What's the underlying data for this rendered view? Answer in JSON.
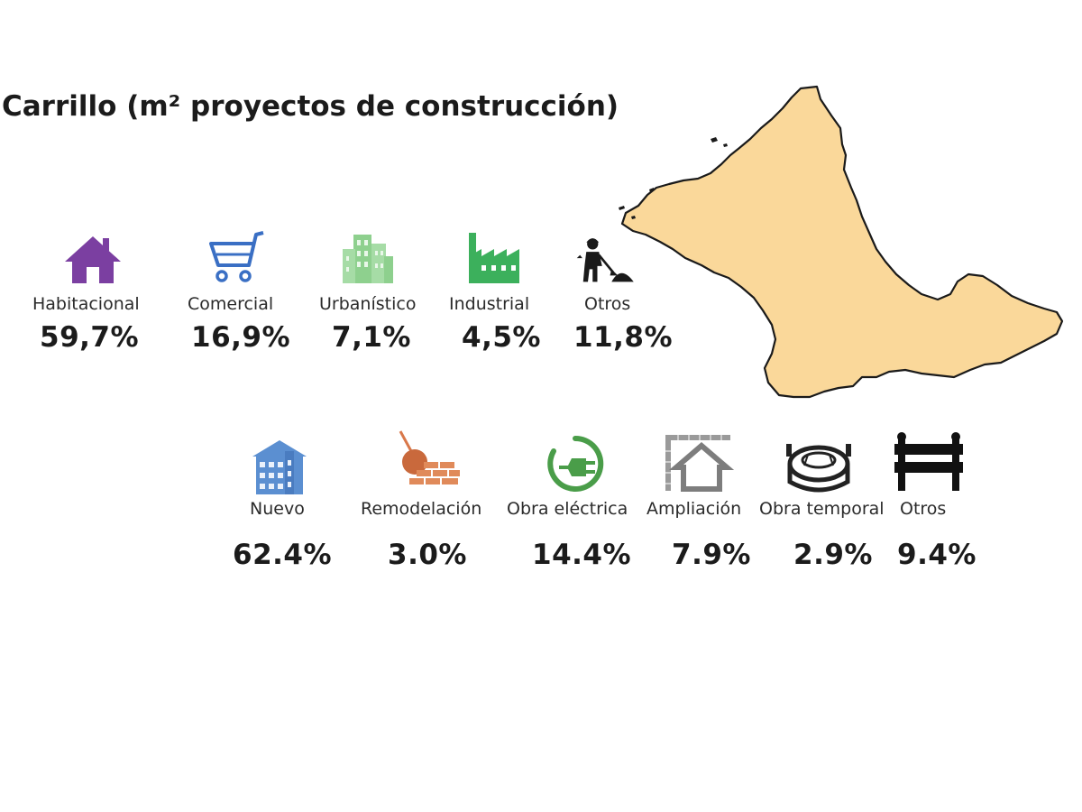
{
  "title": "Carrillo (m² proyectos de construcción)",
  "colors": {
    "map_fill": "#fad89a",
    "house": "#7b3fa1",
    "cart": "#3a6fc4",
    "buildings": "#8ed08e",
    "factory": "#3cb05c",
    "worker": "#1a1a1a",
    "nuevo": "#5b8fd1",
    "remodelacion": "#d9784a",
    "electrica": "#4a9d49",
    "ampliacion": "#7d7d7d",
    "temporal": "#222222",
    "otros2": "#111111"
  },
  "categories_use": [
    {
      "icon": "house-icon",
      "label": "Habitacional",
      "value": "59,7%"
    },
    {
      "icon": "shopping-cart-icon",
      "label": "Comercial",
      "value": "16,9%"
    },
    {
      "icon": "city-buildings-icon",
      "label": "Urbanístico",
      "value": "7,1%"
    },
    {
      "icon": "factory-icon",
      "label": "Industrial",
      "value": "4,5%"
    },
    {
      "icon": "construction-worker-icon",
      "label": "Otros",
      "value": "11,8%"
    }
  ],
  "categories_type": [
    {
      "icon": "new-building-icon",
      "label": "Nuevo",
      "value": "62.4%"
    },
    {
      "icon": "wrecking-ball-icon",
      "label": "Remodelación",
      "value": "3.0%"
    },
    {
      "icon": "electric-plug-icon",
      "label": "Obra eléctrica",
      "value": "14.4%"
    },
    {
      "icon": "house-extension-icon",
      "label": "Ampliación",
      "value": "7.9%"
    },
    {
      "icon": "stadium-icon",
      "label": "Obra temporal",
      "value": "2.9%"
    },
    {
      "icon": "barrier-icon",
      "label": "Otros",
      "value": "9.4%"
    }
  ]
}
